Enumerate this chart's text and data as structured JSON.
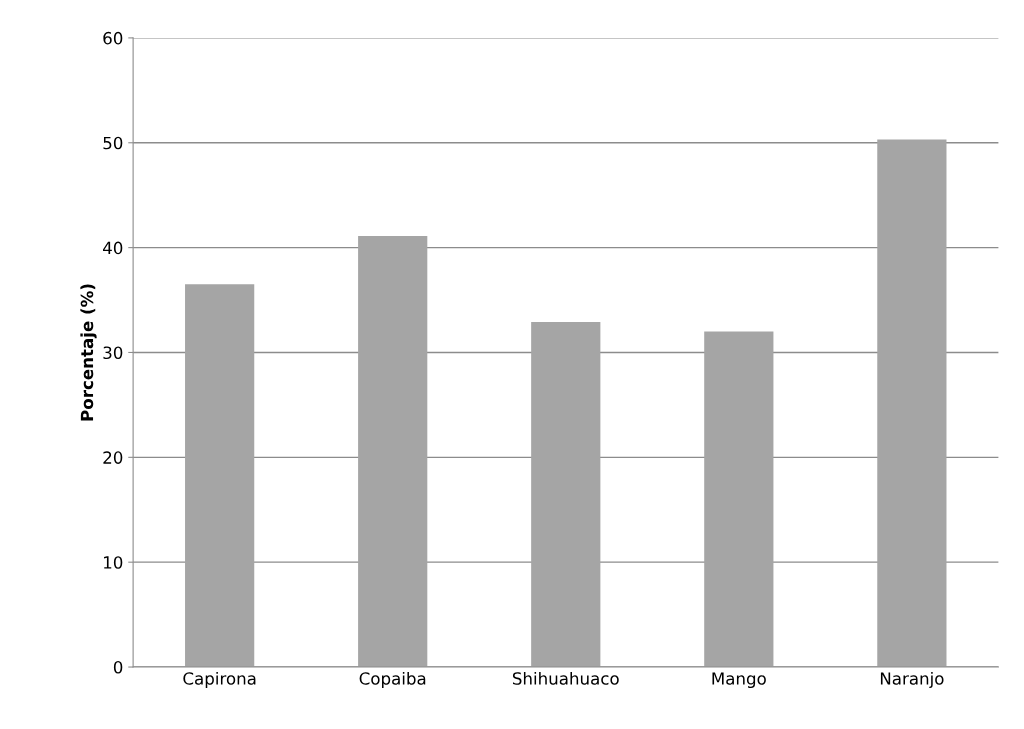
{
  "chart_data": {
    "type": "bar",
    "ylabel": "Porcentaje (%)",
    "categories": [
      "Capirona",
      "Copaiba",
      "Shihuahuaco",
      "Mango",
      "Naranjo"
    ],
    "values": [
      36.5,
      41.1,
      32.9,
      32.0,
      50.3
    ],
    "color": "#a5a5a5",
    "ylim": [
      0,
      60
    ],
    "yticks": [
      0,
      10,
      20,
      30,
      40,
      50,
      60
    ],
    "grid": "y"
  }
}
